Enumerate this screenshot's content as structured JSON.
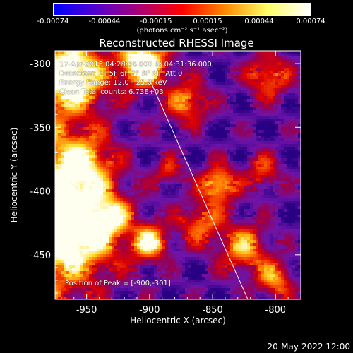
{
  "colorbar": {
    "ticks": [
      "-0.00074",
      "-0.00044",
      "-0.00015",
      "0.00015",
      "0.00044",
      "0.00074"
    ],
    "units": "(photons cm⁻² s⁻¹ asec⁻²)",
    "colors": [
      "#0000ff",
      "#5500cc",
      "#aa0077",
      "#ff0000",
      "#ff8800",
      "#ffff66",
      "#ffffff"
    ]
  },
  "chart_data": {
    "type": "heatmap",
    "title": "Reconstructed RHESSI Image",
    "xlabel": "Heliocentric X (arcsec)",
    "ylabel": "Heliocentric Y (arcsec)",
    "xlim": [
      -975,
      -780
    ],
    "ylim": [
      -485,
      -290
    ],
    "x_ticks": [
      "-950",
      "-900",
      "-850",
      "-800"
    ],
    "x_tick_values": [
      -950,
      -900,
      -850,
      -800
    ],
    "y_ticks": [
      "-300",
      "-350",
      "-400",
      "-450"
    ],
    "y_tick_values": [
      -300,
      -350,
      -400,
      -450
    ],
    "limb_line": [
      [
        -910,
        -290
      ],
      [
        -822,
        -485
      ]
    ],
    "peak": [
      -900,
      -301
    ]
  },
  "annotations": {
    "line1": "17-Apr-2015 04:28:36.000 to 04:31:36.000",
    "line2": "Detectors: 3F 5F 6F 7F 8F 9F, Att 0",
    "line3": "Energy Range: 12.0 - 25.0 keV",
    "line4": "Clean     Total counts: 6.73E+03",
    "peak": "Position of Peak = [-900,-301]"
  },
  "timestamp": "20-May-2022 12:00"
}
